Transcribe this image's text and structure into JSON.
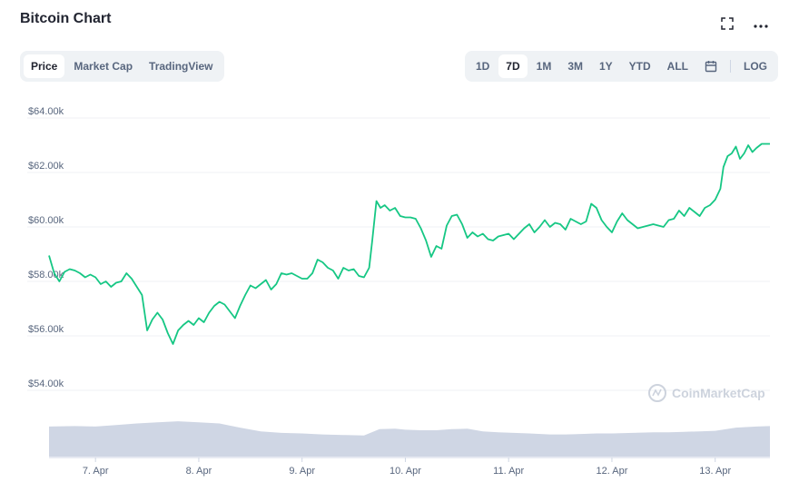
{
  "title": "Bitcoin Chart",
  "icons": {
    "fullscreen": "fullscreen-icon",
    "more": "more-icon",
    "calendar": "calendar-icon",
    "watermark_logo": "coinmarketcap-logo-icon"
  },
  "view_tabs": [
    {
      "label": "Price",
      "active": true
    },
    {
      "label": "Market Cap",
      "active": false
    },
    {
      "label": "TradingView",
      "active": false
    }
  ],
  "range_tabs": [
    {
      "label": "1D",
      "active": false
    },
    {
      "label": "7D",
      "active": true
    },
    {
      "label": "1M",
      "active": false
    },
    {
      "label": "3M",
      "active": false
    },
    {
      "label": "1Y",
      "active": false
    },
    {
      "label": "YTD",
      "active": false
    },
    {
      "label": "ALL",
      "active": false
    }
  ],
  "log_label": "LOG",
  "watermark": "CoinMarketCap",
  "colors": {
    "line": "#16c784",
    "grid": "#eff2f5",
    "volume": "#cfd6e4",
    "axis_text": "#58667e"
  },
  "chart_data": {
    "type": "line",
    "y_ticks": [
      "$64.00k",
      "$62.00k",
      "$60.00k",
      "$58.00k",
      "$56.00k",
      "$54.00k"
    ],
    "y_tick_values": [
      64000,
      62000,
      60000,
      58000,
      56000,
      54000
    ],
    "x_ticks": [
      "7. Apr",
      "8. Apr",
      "9. Apr",
      "10. Apr",
      "11. Apr",
      "12. Apr",
      "13. Apr"
    ],
    "x_range_days": [
      6.55,
      13.53
    ],
    "ylim": [
      53000,
      64500
    ],
    "grid": true,
    "series": [
      {
        "values": [
          [
            6.55,
            58950
          ],
          [
            6.6,
            58300
          ],
          [
            6.65,
            58000
          ],
          [
            6.7,
            58350
          ],
          [
            6.75,
            58450
          ],
          [
            6.8,
            58400
          ],
          [
            6.85,
            58300
          ],
          [
            6.9,
            58150
          ],
          [
            6.95,
            58250
          ],
          [
            7.0,
            58150
          ],
          [
            7.05,
            57900
          ],
          [
            7.1,
            58000
          ],
          [
            7.15,
            57800
          ],
          [
            7.2,
            57950
          ],
          [
            7.25,
            58000
          ],
          [
            7.3,
            58300
          ],
          [
            7.35,
            58100
          ],
          [
            7.4,
            57800
          ],
          [
            7.45,
            57500
          ],
          [
            7.5,
            56200
          ],
          [
            7.55,
            56600
          ],
          [
            7.6,
            56850
          ],
          [
            7.65,
            56600
          ],
          [
            7.7,
            56100
          ],
          [
            7.75,
            55700
          ],
          [
            7.8,
            56200
          ],
          [
            7.85,
            56400
          ],
          [
            7.9,
            56550
          ],
          [
            7.95,
            56400
          ],
          [
            8.0,
            56650
          ],
          [
            8.05,
            56500
          ],
          [
            8.1,
            56850
          ],
          [
            8.15,
            57100
          ],
          [
            8.2,
            57250
          ],
          [
            8.25,
            57150
          ],
          [
            8.3,
            56900
          ],
          [
            8.35,
            56650
          ],
          [
            8.4,
            57100
          ],
          [
            8.45,
            57500
          ],
          [
            8.5,
            57850
          ],
          [
            8.55,
            57750
          ],
          [
            8.6,
            57900
          ],
          [
            8.65,
            58050
          ],
          [
            8.7,
            57700
          ],
          [
            8.75,
            57900
          ],
          [
            8.8,
            58300
          ],
          [
            8.85,
            58250
          ],
          [
            8.9,
            58300
          ],
          [
            8.95,
            58200
          ],
          [
            9.0,
            58100
          ],
          [
            9.05,
            58100
          ],
          [
            9.1,
            58300
          ],
          [
            9.15,
            58800
          ],
          [
            9.2,
            58700
          ],
          [
            9.25,
            58500
          ],
          [
            9.3,
            58400
          ],
          [
            9.35,
            58100
          ],
          [
            9.4,
            58500
          ],
          [
            9.45,
            58400
          ],
          [
            9.5,
            58450
          ],
          [
            9.55,
            58200
          ],
          [
            9.6,
            58150
          ],
          [
            9.65,
            58500
          ],
          [
            9.68,
            59500
          ],
          [
            9.72,
            60950
          ],
          [
            9.76,
            60700
          ],
          [
            9.8,
            60800
          ],
          [
            9.85,
            60600
          ],
          [
            9.9,
            60700
          ],
          [
            9.95,
            60400
          ],
          [
            10.0,
            60350
          ],
          [
            10.05,
            60350
          ],
          [
            10.1,
            60300
          ],
          [
            10.15,
            59950
          ],
          [
            10.2,
            59500
          ],
          [
            10.25,
            58900
          ],
          [
            10.3,
            59300
          ],
          [
            10.35,
            59200
          ],
          [
            10.4,
            60050
          ],
          [
            10.45,
            60400
          ],
          [
            10.5,
            60450
          ],
          [
            10.55,
            60100
          ],
          [
            10.6,
            59600
          ],
          [
            10.65,
            59800
          ],
          [
            10.7,
            59650
          ],
          [
            10.75,
            59750
          ],
          [
            10.8,
            59550
          ],
          [
            10.85,
            59500
          ],
          [
            10.9,
            59650
          ],
          [
            10.95,
            59700
          ],
          [
            11.0,
            59750
          ],
          [
            11.05,
            59550
          ],
          [
            11.1,
            59750
          ],
          [
            11.15,
            59950
          ],
          [
            11.2,
            60100
          ],
          [
            11.25,
            59800
          ],
          [
            11.3,
            60000
          ],
          [
            11.35,
            60250
          ],
          [
            11.4,
            60000
          ],
          [
            11.45,
            60150
          ],
          [
            11.5,
            60100
          ],
          [
            11.55,
            59900
          ],
          [
            11.6,
            60300
          ],
          [
            11.65,
            60200
          ],
          [
            11.7,
            60100
          ],
          [
            11.75,
            60200
          ],
          [
            11.8,
            60850
          ],
          [
            11.85,
            60700
          ],
          [
            11.9,
            60250
          ],
          [
            11.95,
            60000
          ],
          [
            12.0,
            59800
          ],
          [
            12.05,
            60200
          ],
          [
            12.1,
            60500
          ],
          [
            12.15,
            60250
          ],
          [
            12.2,
            60100
          ],
          [
            12.25,
            59950
          ],
          [
            12.3,
            60000
          ],
          [
            12.35,
            60050
          ],
          [
            12.4,
            60100
          ],
          [
            12.45,
            60050
          ],
          [
            12.5,
            60000
          ],
          [
            12.55,
            60250
          ],
          [
            12.6,
            60300
          ],
          [
            12.65,
            60600
          ],
          [
            12.7,
            60400
          ],
          [
            12.75,
            60700
          ],
          [
            12.8,
            60550
          ],
          [
            12.85,
            60400
          ],
          [
            12.9,
            60700
          ],
          [
            12.95,
            60800
          ],
          [
            13.0,
            61000
          ],
          [
            13.05,
            61400
          ],
          [
            13.08,
            62200
          ],
          [
            13.12,
            62600
          ],
          [
            13.16,
            62700
          ],
          [
            13.2,
            62950
          ],
          [
            13.24,
            62500
          ],
          [
            13.28,
            62700
          ],
          [
            13.32,
            63000
          ],
          [
            13.36,
            62750
          ],
          [
            13.4,
            62900
          ],
          [
            13.45,
            63050
          ],
          [
            13.53,
            63050
          ]
        ]
      }
    ],
    "volume": [
      [
        6.55,
        0.57
      ],
      [
        6.8,
        0.58
      ],
      [
        7.0,
        0.57
      ],
      [
        7.2,
        0.6
      ],
      [
        7.4,
        0.63
      ],
      [
        7.6,
        0.65
      ],
      [
        7.8,
        0.67
      ],
      [
        8.0,
        0.65
      ],
      [
        8.2,
        0.63
      ],
      [
        8.4,
        0.55
      ],
      [
        8.6,
        0.48
      ],
      [
        8.8,
        0.45
      ],
      [
        9.0,
        0.44
      ],
      [
        9.2,
        0.42
      ],
      [
        9.4,
        0.41
      ],
      [
        9.6,
        0.4
      ],
      [
        9.75,
        0.52
      ],
      [
        9.9,
        0.53
      ],
      [
        10.0,
        0.51
      ],
      [
        10.15,
        0.5
      ],
      [
        10.3,
        0.5
      ],
      [
        10.45,
        0.52
      ],
      [
        10.6,
        0.53
      ],
      [
        10.75,
        0.48
      ],
      [
        10.9,
        0.46
      ],
      [
        11.05,
        0.45
      ],
      [
        11.2,
        0.44
      ],
      [
        11.4,
        0.42
      ],
      [
        11.55,
        0.42
      ],
      [
        11.7,
        0.43
      ],
      [
        11.85,
        0.44
      ],
      [
        12.0,
        0.44
      ],
      [
        12.2,
        0.45
      ],
      [
        12.4,
        0.46
      ],
      [
        12.55,
        0.46
      ],
      [
        12.7,
        0.47
      ],
      [
        12.85,
        0.48
      ],
      [
        13.0,
        0.49
      ],
      [
        13.2,
        0.55
      ],
      [
        13.4,
        0.57
      ],
      [
        13.53,
        0.58
      ]
    ]
  }
}
